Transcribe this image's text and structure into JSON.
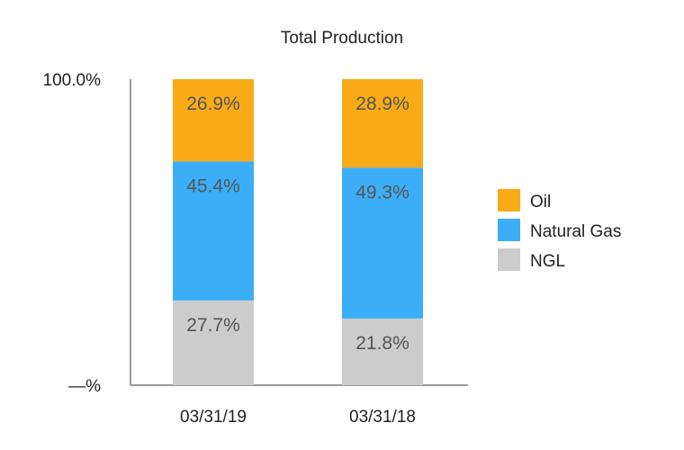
{
  "chart_data": {
    "type": "bar",
    "stacked": true,
    "title": "Total Production",
    "categories": [
      "03/31/19",
      "03/31/18"
    ],
    "series": [
      {
        "name": "NGL",
        "values": [
          27.7,
          21.8
        ],
        "labels": [
          "27.7%",
          "21.8%"
        ],
        "color": "#cccccc"
      },
      {
        "name": "Natural Gas",
        "values": [
          45.4,
          49.3
        ],
        "labels": [
          "45.4%",
          "49.3%"
        ],
        "color": "#3caef8"
      },
      {
        "name": "Oil",
        "values": [
          26.9,
          28.9
        ],
        "labels": [
          "26.9%",
          "28.9%"
        ],
        "color": "#f8ab17"
      }
    ],
    "legend_order": [
      "Oil",
      "Natural Gas",
      "NGL"
    ],
    "yticks": [
      {
        "value": 0,
        "label": "—%"
      },
      {
        "value": 100,
        "label": "100.0%"
      }
    ],
    "ylim": [
      0,
      100
    ],
    "grid": false,
    "legend_position": "right"
  }
}
